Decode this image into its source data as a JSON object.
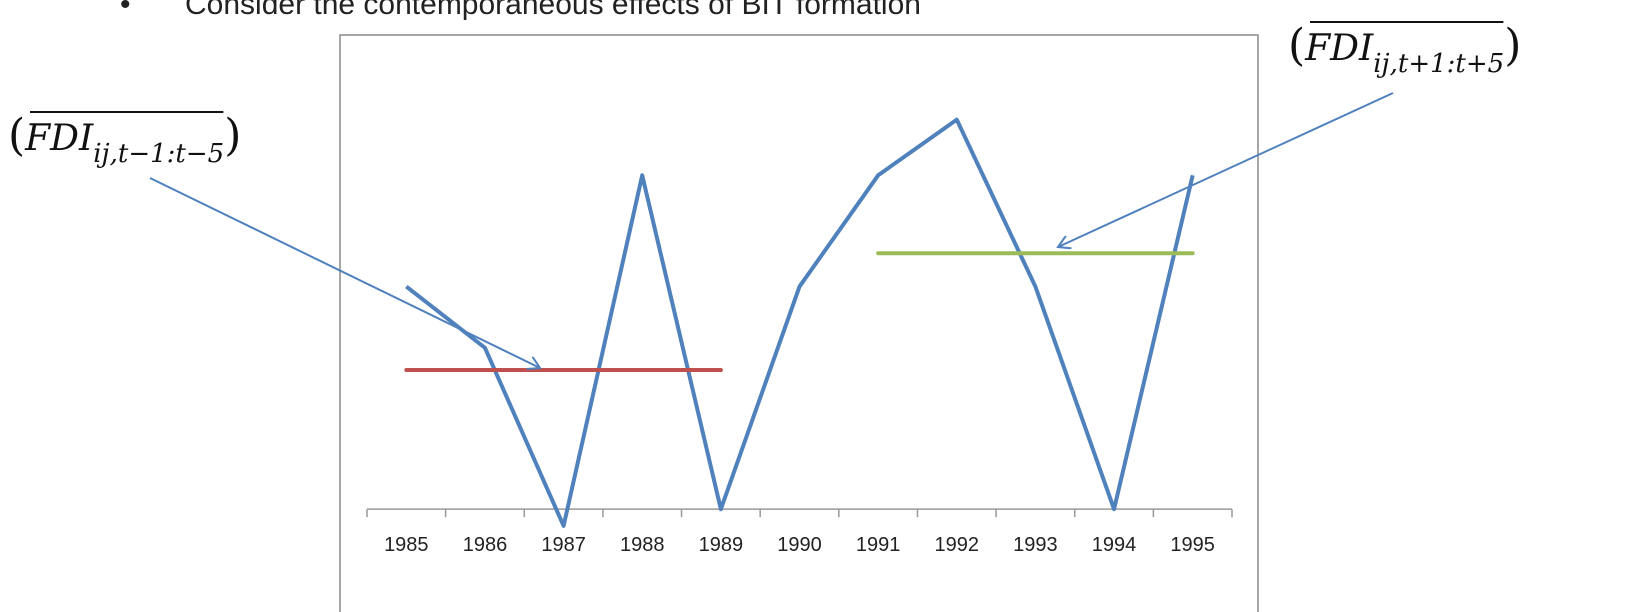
{
  "chart_data": {
    "type": "line",
    "title": "Consider the contemporaneous effects of BIT formation",
    "categories": [
      "1985",
      "1986",
      "1987",
      "1988",
      "1989",
      "1990",
      "1991",
      "1992",
      "1993",
      "1994",
      "1995"
    ],
    "series": [
      {
        "color": "#4f81bd",
        "values": [
          4,
          2.9,
          -0.3,
          6,
          0,
          4,
          6,
          7,
          4,
          0,
          6
        ]
      }
    ],
    "ylim": [
      -0.5,
      8
    ],
    "averages": [
      {
        "value": 2.5,
        "color": "#c0504d",
        "from": 0,
        "to": 4
      },
      {
        "value": 4.6,
        "color": "#9bbb59",
        "from": 6,
        "to": 10
      }
    ],
    "annotations": [
      {
        "open": "(",
        "text": "FDI",
        "subscript": "ij,t−1:t−5",
        "close": ")"
      },
      {
        "open": "(",
        "text": "FDI",
        "subscript": "ij,t+1:t+5",
        "close": ")"
      }
    ]
  }
}
